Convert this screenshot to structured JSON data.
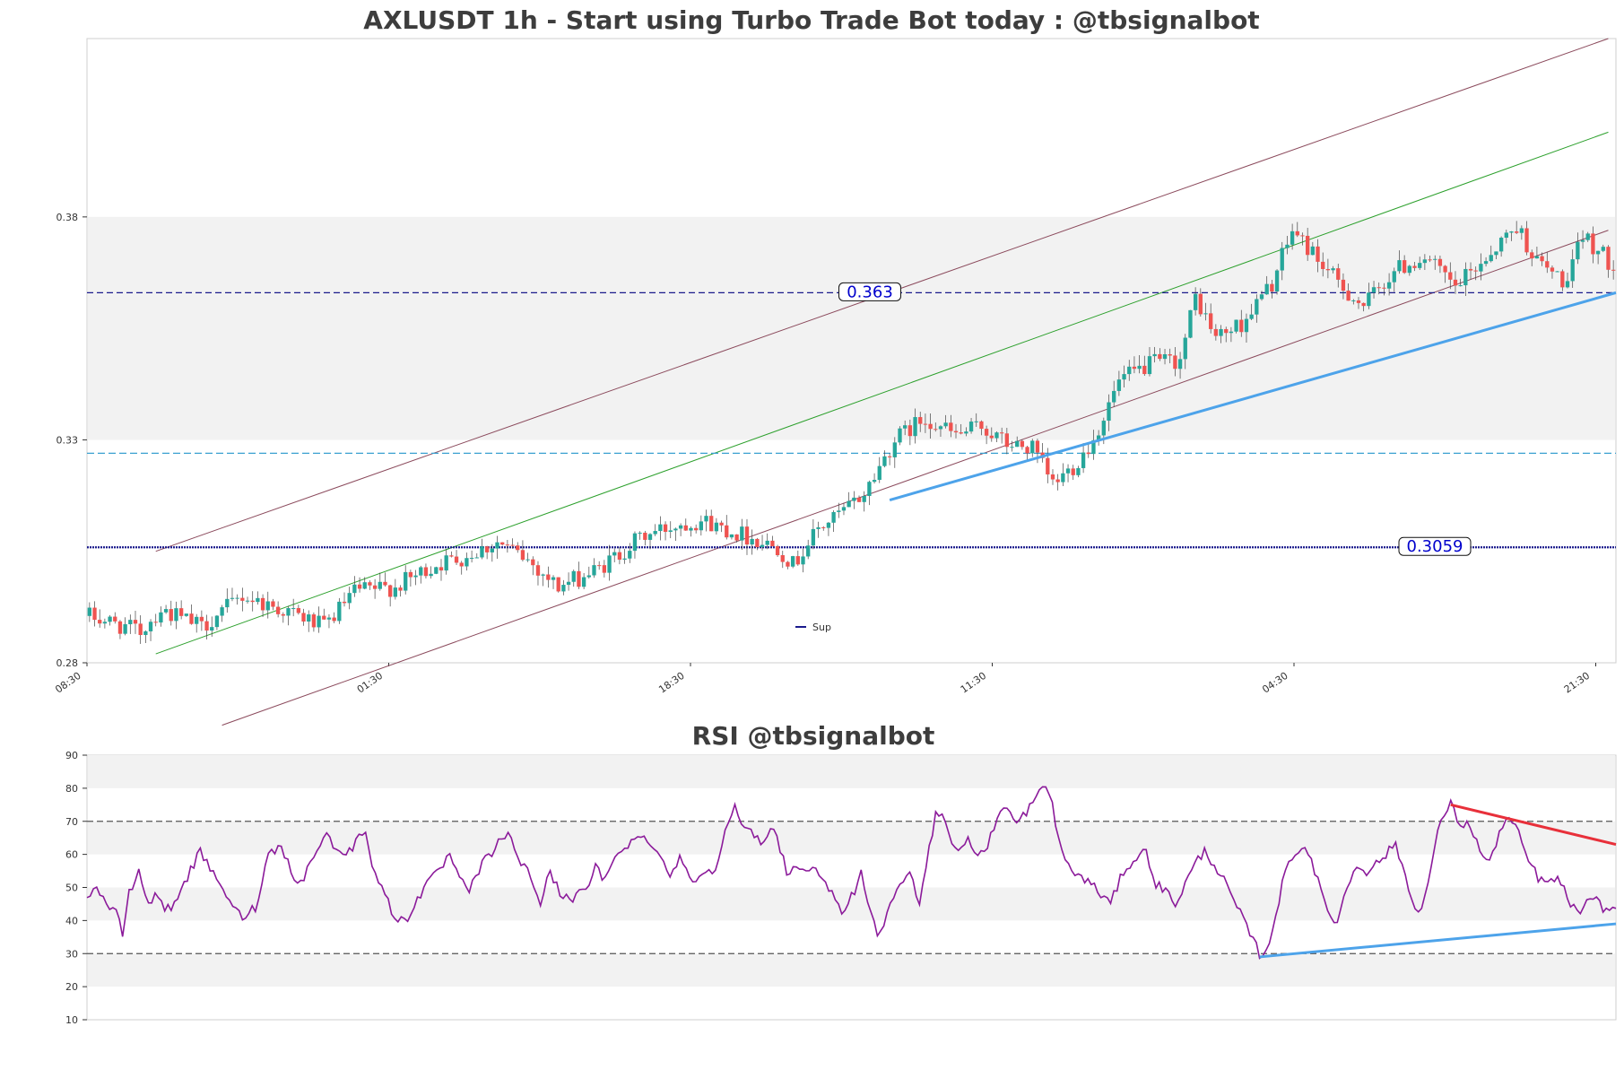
{
  "colors": {
    "up": "#26a69a",
    "down": "#ef5350",
    "channel_outer": "#8b4a5c",
    "channel_mid": "#2ca02c",
    "level_dark": "#1a1a8c",
    "level_light": "#3aa0d0",
    "support_line": "#4da3ea",
    "resistance_line": "#e8303a",
    "rsi_line": "#8b1a9a",
    "band": "#f2f2f2"
  },
  "chart_data": [
    {
      "type": "candlestick",
      "title": "AXLUSDT 1h - Start using Turbo Trade Bot today : @tbsignalbot",
      "ylim": [
        0.28,
        0.42
      ],
      "y_ticks": [
        "0.28",
        "0.33",
        "0.38"
      ],
      "x_ticks": [
        "08:30",
        "01:30",
        "18:30",
        "11:30",
        "04:30",
        "21:30"
      ],
      "num_candles": 300,
      "close_keypoints": [
        [
          0,
          0.2905
        ],
        [
          10,
          0.287
        ],
        [
          14,
          0.292
        ],
        [
          22,
          0.288
        ],
        [
          30,
          0.295
        ],
        [
          40,
          0.291
        ],
        [
          46,
          0.288
        ],
        [
          52,
          0.296
        ],
        [
          60,
          0.297
        ],
        [
          68,
          0.302
        ],
        [
          74,
          0.304
        ],
        [
          80,
          0.307
        ],
        [
          86,
          0.303
        ],
        [
          92,
          0.297
        ],
        [
          100,
          0.301
        ],
        [
          108,
          0.308
        ],
        [
          115,
          0.311
        ],
        [
          120,
          0.312
        ],
        [
          125,
          0.31
        ],
        [
          130,
          0.308
        ],
        [
          135,
          0.306
        ],
        [
          138,
          0.302
        ],
        [
          143,
          0.31
        ],
        [
          148,
          0.314
        ],
        [
          152,
          0.318
        ],
        [
          158,
          0.33
        ],
        [
          164,
          0.335
        ],
        [
          170,
          0.331
        ],
        [
          175,
          0.333
        ],
        [
          180,
          0.329
        ],
        [
          185,
          0.328
        ],
        [
          189,
          0.32
        ],
        [
          193,
          0.324
        ],
        [
          197,
          0.33
        ],
        [
          202,
          0.343
        ],
        [
          208,
          0.347
        ],
        [
          214,
          0.348
        ],
        [
          217,
          0.362
        ],
        [
          221,
          0.353
        ],
        [
          226,
          0.356
        ],
        [
          232,
          0.365
        ],
        [
          236,
          0.377
        ],
        [
          240,
          0.372
        ],
        [
          245,
          0.365
        ],
        [
          250,
          0.36
        ],
        [
          256,
          0.368
        ],
        [
          262,
          0.371
        ],
        [
          268,
          0.364
        ],
        [
          274,
          0.371
        ],
        [
          280,
          0.378
        ],
        [
          284,
          0.37
        ],
        [
          290,
          0.365
        ],
        [
          293,
          0.376
        ],
        [
          298,
          0.37
        ]
      ],
      "levels": [
        {
          "label": "0.363",
          "value": 0.363,
          "style": "dashed-dark"
        },
        {
          "label": "",
          "value": 0.327,
          "style": "dashed-light"
        },
        {
          "label": "0.3059",
          "value": 0.3059,
          "style": "dotted-dark"
        }
      ],
      "shaded_band": [
        0.33,
        0.38
      ],
      "channel": {
        "upper": {
          "start": [
            13,
            0.305
          ],
          "end": [
            298,
            0.42
          ]
        },
        "middle": {
          "start": [
            13,
            0.282
          ],
          "end": [
            298,
            0.399
          ]
        },
        "lower": {
          "start": [
            26,
            0.266
          ],
          "end": [
            298,
            0.377
          ]
        }
      },
      "support_line": {
        "start": [
          157,
          0.3165
        ],
        "end": [
          300,
          0.363
        ]
      },
      "legend": [
        "Sup"
      ]
    },
    {
      "type": "line",
      "title": "RSI @tbsignalbot",
      "ylim": [
        10,
        90
      ],
      "y_ticks": [
        "10",
        "20",
        "30",
        "40",
        "50",
        "60",
        "70",
        "80",
        "90"
      ],
      "reference_levels": [
        30,
        70
      ],
      "bands": [
        [
          20,
          30
        ],
        [
          40,
          50
        ],
        [
          60,
          70
        ],
        [
          80,
          90
        ]
      ],
      "keypoints": [
        [
          0,
          48
        ],
        [
          3,
          50
        ],
        [
          7,
          44
        ],
        [
          9,
          42
        ],
        [
          11,
          36
        ],
        [
          13,
          48
        ],
        [
          16,
          55
        ],
        [
          19,
          45
        ],
        [
          22,
          48
        ],
        [
          24,
          44
        ],
        [
          26,
          43
        ],
        [
          29,
          50
        ],
        [
          32,
          55
        ],
        [
          35,
          61
        ],
        [
          38,
          55
        ],
        [
          41,
          52
        ],
        [
          44,
          45
        ],
        [
          48,
          41
        ],
        [
          52,
          44
        ],
        [
          56,
          60
        ],
        [
          60,
          63
        ],
        [
          63,
          55
        ],
        [
          66,
          51
        ],
        [
          70,
          60
        ],
        [
          74,
          66
        ],
        [
          78,
          60
        ],
        [
          82,
          62
        ],
        [
          86,
          68
        ],
        [
          88,
          57
        ],
        [
          92,
          48
        ],
        [
          95,
          40
        ],
        [
          99,
          41
        ],
        [
          104,
          50
        ],
        [
          108,
          54
        ],
        [
          112,
          60
        ],
        [
          115,
          52
        ],
        [
          118,
          49
        ],
        [
          122,
          57
        ],
        [
          126,
          62
        ],
        [
          130,
          67
        ],
        [
          133,
          58
        ],
        [
          136,
          56
        ],
        [
          140,
          45
        ],
        [
          143,
          55
        ],
        [
          146,
          48
        ],
        [
          150,
          47
        ],
        [
          154,
          49
        ],
        [
          157,
          56
        ],
        [
          160,
          52
        ],
        [
          164,
          61
        ],
        [
          168,
          64
        ],
        [
          172,
          65
        ],
        [
          176,
          62
        ],
        [
          180,
          53
        ],
        [
          183,
          60
        ],
        [
          186,
          52
        ],
        [
          190,
          54
        ],
        [
          194,
          56
        ],
        [
          197,
          68
        ],
        [
          200,
          74
        ],
        [
          203,
          67
        ],
        [
          206,
          66
        ],
        [
          209,
          63
        ],
        [
          212,
          69
        ],
        [
          216,
          55
        ],
        [
          220,
          56
        ],
        [
          224,
          55
        ],
        [
          228,
          53
        ],
        [
          231,
          45
        ],
        [
          233,
          42
        ],
        [
          236,
          47
        ],
        [
          239,
          54
        ],
        [
          241,
          44
        ],
        [
          244,
          36
        ],
        [
          247,
          41
        ],
        [
          250,
          50
        ],
        [
          254,
          54
        ],
        [
          257,
          46
        ],
        [
          259,
          57
        ],
        [
          262,
          72
        ],
        [
          264,
          73
        ],
        [
          267,
          63
        ],
        [
          270,
          62
        ],
        [
          272,
          64
        ],
        [
          275,
          60
        ],
        [
          278,
          62
        ],
        [
          281,
          72
        ],
        [
          284,
          74
        ],
        [
          287,
          69
        ],
        [
          290,
          73
        ],
        [
          293,
          77
        ],
        [
          296,
          81
        ],
        [
          298,
          75
        ],
        [
          301,
          60
        ],
        [
          305,
          54
        ],
        [
          309,
          52
        ],
        [
          313,
          48
        ],
        [
          316,
          45
        ],
        [
          320,
          55
        ],
        [
          324,
          59
        ],
        [
          327,
          61
        ],
        [
          330,
          51
        ],
        [
          333,
          49
        ],
        [
          336,
          45
        ],
        [
          339,
          51
        ],
        [
          342,
          57
        ],
        [
          345,
          61
        ],
        [
          348,
          57
        ],
        [
          351,
          52
        ],
        [
          354,
          46
        ],
        [
          357,
          40
        ],
        [
          360,
          34
        ],
        [
          362,
          30
        ],
        [
          364,
          30
        ],
        [
          367,
          42
        ],
        [
          370,
          55
        ],
        [
          373,
          61
        ],
        [
          376,
          62
        ],
        [
          378,
          59
        ],
        [
          381,
          48
        ],
        [
          384,
          41
        ],
        [
          386,
          40
        ],
        [
          389,
          50
        ],
        [
          392,
          57
        ],
        [
          395,
          55
        ],
        [
          398,
          57
        ],
        [
          401,
          60
        ],
        [
          404,
          63
        ],
        [
          406,
          57
        ],
        [
          409,
          46
        ],
        [
          412,
          43
        ],
        [
          415,
          56
        ],
        [
          418,
          71
        ],
        [
          421,
          75
        ],
        [
          424,
          69
        ],
        [
          427,
          69
        ],
        [
          430,
          61
        ],
        [
          433,
          57
        ],
        [
          436,
          67
        ],
        [
          439,
          71
        ],
        [
          442,
          66
        ],
        [
          445,
          58
        ],
        [
          448,
          53
        ],
        [
          451,
          51
        ],
        [
          454,
          53
        ],
        [
          457,
          47
        ],
        [
          460,
          42
        ],
        [
          463,
          45
        ],
        [
          466,
          46
        ],
        [
          469,
          43
        ],
        [
          472,
          44
        ]
      ],
      "resistance_line": {
        "start": [
          421,
          75
        ],
        "end": [
          472,
          63
        ]
      },
      "support_line": {
        "start": [
          362,
          29
        ],
        "end": [
          472,
          39
        ]
      }
    }
  ]
}
